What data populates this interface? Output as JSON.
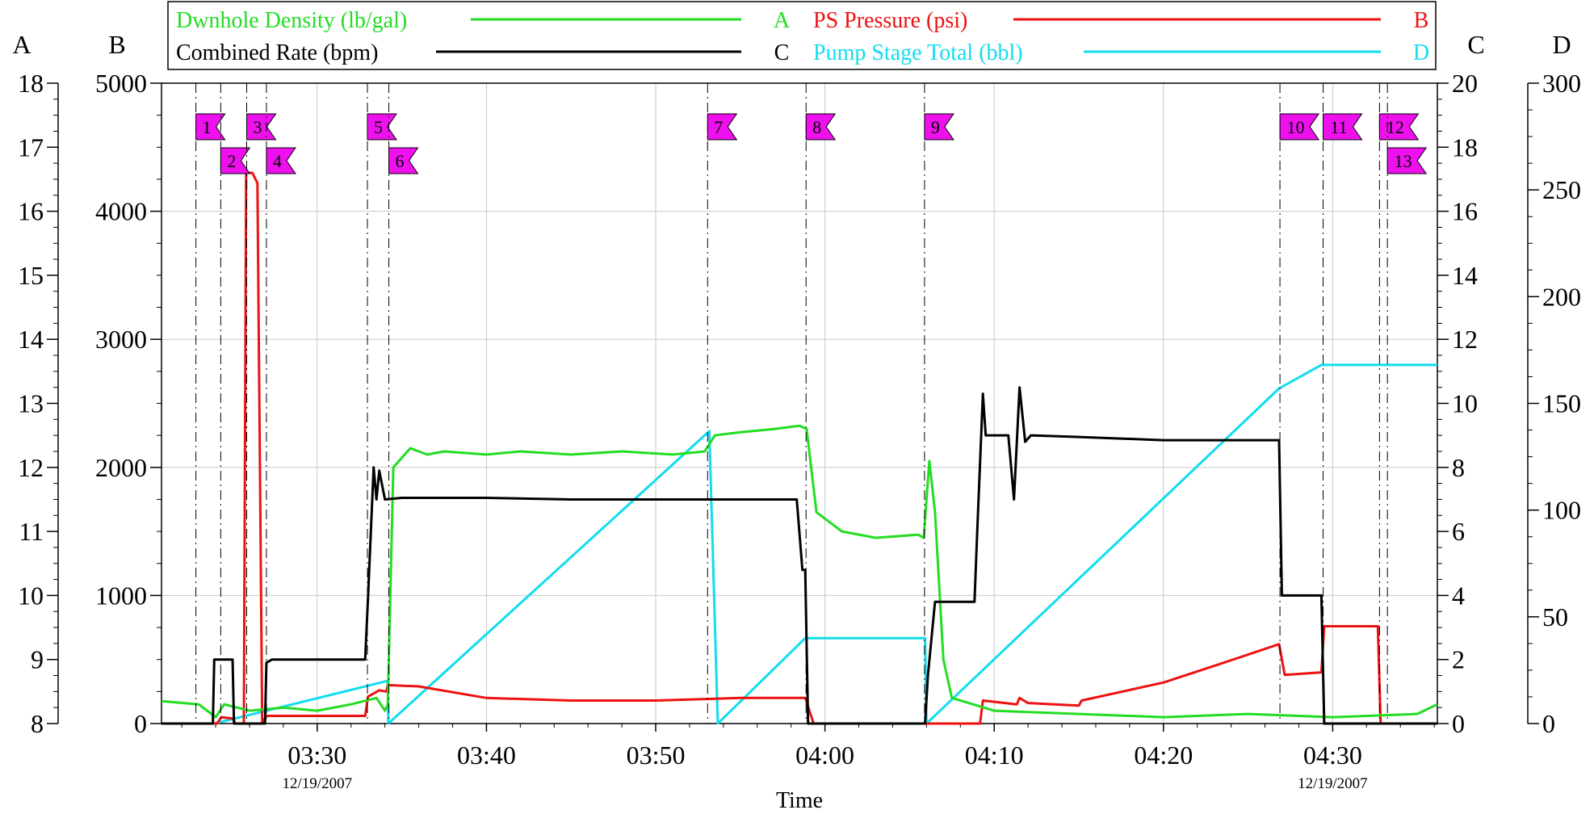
{
  "chart_data": {
    "type": "line",
    "xlabel": "Time",
    "x_range": [
      "03:20:48",
      "04:36:11"
    ],
    "x_ticks": [
      "03:30",
      "03:40",
      "03:50",
      "04:00",
      "04:10",
      "04:20",
      "04:30"
    ],
    "date_labels": [
      {
        "at": "03:30",
        "text": "12/19/2007"
      },
      {
        "at": "04:30",
        "text": "12/19/2007"
      }
    ],
    "axes": [
      {
        "id": "A",
        "label": "A",
        "side": "left",
        "min": 8,
        "max": 18,
        "ticks": [
          "8",
          "9",
          "10",
          "11",
          "12",
          "13",
          "14",
          "15",
          "16",
          "17",
          "18"
        ]
      },
      {
        "id": "B",
        "label": "B",
        "side": "left",
        "min": 0,
        "max": 5000,
        "ticks": [
          "0",
          "1000",
          "2000",
          "3000",
          "4000",
          "5000"
        ]
      },
      {
        "id": "C",
        "label": "C",
        "side": "right",
        "min": 0,
        "max": 20,
        "ticks": [
          "0",
          "2",
          "4",
          "6",
          "8",
          "10",
          "12",
          "14",
          "16",
          "18",
          "20"
        ]
      },
      {
        "id": "D",
        "label": "D",
        "side": "right",
        "min": 0,
        "max": 300,
        "ticks": [
          "0",
          "50",
          "100",
          "150",
          "200",
          "250",
          "300"
        ]
      }
    ],
    "legend": {
      "placement": "top",
      "entries": [
        {
          "name": "Dwnhole Density (lb/gal)",
          "axis": "A",
          "color": "#22dd22"
        },
        {
          "name": "PS Pressure (psi)",
          "axis": "B",
          "color": "#ee1111"
        },
        {
          "name": "Combined Rate (bpm)",
          "axis": "C",
          "color": "#000000"
        },
        {
          "name": "Pump Stage Total (bbl)",
          "axis": "D",
          "color": "#11ddee"
        }
      ]
    },
    "grid": true,
    "event_markers": [
      {
        "label": "1",
        "time": "03:22:50",
        "row": 0
      },
      {
        "label": "2",
        "time": "03:24:18",
        "row": 1
      },
      {
        "label": "3",
        "time": "03:25:50",
        "row": 0
      },
      {
        "label": "4",
        "time": "03:27:00",
        "row": 1
      },
      {
        "label": "5",
        "time": "03:32:58",
        "row": 0
      },
      {
        "label": "6",
        "time": "03:34:14",
        "row": 1
      },
      {
        "label": "7",
        "time": "03:53:04",
        "row": 0
      },
      {
        "label": "8",
        "time": "03:58:53",
        "row": 0
      },
      {
        "label": "9",
        "time": "04:05:53",
        "row": 0
      },
      {
        "label": "10",
        "time": "04:26:53",
        "row": 0
      },
      {
        "label": "11",
        "time": "04:29:26",
        "row": 0
      },
      {
        "label": "12",
        "time": "04:32:46",
        "row": 0
      },
      {
        "label": "13",
        "time": "04:33:14",
        "row": 1
      }
    ],
    "series": [
      {
        "name": "Dwnhole Density (lb/gal)",
        "axis": "A",
        "color": "#22dd22",
        "points": [
          [
            "03:20:48",
            8.35
          ],
          [
            "03:23:00",
            8.3
          ],
          [
            "03:24:00",
            8.1
          ],
          [
            "03:24:30",
            8.3
          ],
          [
            "03:26:00",
            8.2
          ],
          [
            "03:28:00",
            8.25
          ],
          [
            "03:30:00",
            8.2
          ],
          [
            "03:32:00",
            8.3
          ],
          [
            "03:33:30",
            8.4
          ],
          [
            "03:34:00",
            8.2
          ],
          [
            "03:34:10",
            8.3
          ],
          [
            "03:34:30",
            12.0
          ],
          [
            "03:35:30",
            12.3
          ],
          [
            "03:36:30",
            12.2
          ],
          [
            "03:37:30",
            12.25
          ],
          [
            "03:40:00",
            12.2
          ],
          [
            "03:42:00",
            12.25
          ],
          [
            "03:45:00",
            12.2
          ],
          [
            "03:48:00",
            12.25
          ],
          [
            "03:51:00",
            12.2
          ],
          [
            "03:52:54",
            12.25
          ],
          [
            "03:53:30",
            12.5
          ],
          [
            "03:55:00",
            12.55
          ],
          [
            "03:57:00",
            12.6
          ],
          [
            "03:58:30",
            12.65
          ],
          [
            "03:58:55",
            12.6
          ],
          [
            "03:59:30",
            11.3
          ],
          [
            "04:01:00",
            11.0
          ],
          [
            "04:03:00",
            10.9
          ],
          [
            "04:05:30",
            10.95
          ],
          [
            "04:05:50",
            10.9
          ],
          [
            "04:06:10",
            12.1
          ],
          [
            "04:06:30",
            11.3
          ],
          [
            "04:07:00",
            9.0
          ],
          [
            "04:07:30",
            8.4
          ],
          [
            "04:10:00",
            8.2
          ],
          [
            "04:15:00",
            8.15
          ],
          [
            "04:20:00",
            8.1
          ],
          [
            "04:25:00",
            8.15
          ],
          [
            "04:30:00",
            8.1
          ],
          [
            "04:35:00",
            8.15
          ],
          [
            "04:36:11",
            8.3
          ]
        ]
      },
      {
        "name": "PS Pressure (psi)",
        "axis": "B",
        "color": "#ee1111",
        "points": [
          [
            "03:20:48",
            0
          ],
          [
            "03:24:05",
            0
          ],
          [
            "03:24:20",
            50
          ],
          [
            "03:25:00",
            40
          ],
          [
            "03:25:10",
            0
          ],
          [
            "03:25:40",
            0
          ],
          [
            "03:25:48",
            4300
          ],
          [
            "03:26:10",
            4300
          ],
          [
            "03:26:28",
            4220
          ],
          [
            "03:26:45",
            0
          ],
          [
            "03:27:00",
            60
          ],
          [
            "03:32:50",
            60
          ],
          [
            "03:33:00",
            210
          ],
          [
            "03:33:40",
            260
          ],
          [
            "03:34:05",
            250
          ],
          [
            "03:34:10",
            300
          ],
          [
            "03:36:00",
            290
          ],
          [
            "03:40:00",
            200
          ],
          [
            "03:45:00",
            180
          ],
          [
            "03:50:00",
            180
          ],
          [
            "03:55:00",
            200
          ],
          [
            "03:58:50",
            200
          ],
          [
            "03:59:20",
            0
          ],
          [
            "04:09:10",
            0
          ],
          [
            "04:09:20",
            180
          ],
          [
            "04:11:20",
            150
          ],
          [
            "04:11:30",
            200
          ],
          [
            "04:12:00",
            160
          ],
          [
            "04:15:00",
            140
          ],
          [
            "04:15:10",
            180
          ],
          [
            "04:20:00",
            320
          ],
          [
            "04:23:00",
            450
          ],
          [
            "04:26:50",
            620
          ],
          [
            "04:27:10",
            380
          ],
          [
            "04:29:20",
            400
          ],
          [
            "04:29:30",
            760
          ],
          [
            "04:32:40",
            760
          ],
          [
            "04:32:50",
            0
          ],
          [
            "04:36:11",
            0
          ]
        ]
      },
      {
        "name": "Combined Rate (bpm)",
        "axis": "C",
        "color": "#000000",
        "points": [
          [
            "03:20:48",
            0
          ],
          [
            "03:23:50",
            0
          ],
          [
            "03:23:55",
            2.0
          ],
          [
            "03:25:00",
            2.0
          ],
          [
            "03:25:05",
            0
          ],
          [
            "03:26:55",
            0
          ],
          [
            "03:27:00",
            1.9
          ],
          [
            "03:27:20",
            2.0
          ],
          [
            "03:32:50",
            2.0
          ],
          [
            "03:33:00",
            3.9
          ],
          [
            "03:33:20",
            8.0
          ],
          [
            "03:33:30",
            7.0
          ],
          [
            "03:33:40",
            7.9
          ],
          [
            "03:34:00",
            7.0
          ],
          [
            "03:35:00",
            7.05
          ],
          [
            "03:40:00",
            7.05
          ],
          [
            "03:45:00",
            7.0
          ],
          [
            "03:58:20",
            7.0
          ],
          [
            "03:58:40",
            4.8
          ],
          [
            "03:58:50",
            4.8
          ],
          [
            "03:59:00",
            0
          ],
          [
            "04:05:55",
            0
          ],
          [
            "04:06:05",
            1.5
          ],
          [
            "04:06:30",
            3.8
          ],
          [
            "04:08:50",
            3.8
          ],
          [
            "04:09:00",
            6.0
          ],
          [
            "04:09:20",
            10.3
          ],
          [
            "04:09:30",
            9.0
          ],
          [
            "04:10:50",
            9.0
          ],
          [
            "04:11:10",
            7.0
          ],
          [
            "04:11:30",
            10.5
          ],
          [
            "04:11:50",
            8.8
          ],
          [
            "04:12:10",
            9.0
          ],
          [
            "04:15:00",
            8.95
          ],
          [
            "04:20:00",
            8.85
          ],
          [
            "04:26:50",
            8.85
          ],
          [
            "04:27:00",
            4.0
          ],
          [
            "04:29:20",
            4.0
          ],
          [
            "04:29:30",
            0
          ],
          [
            "04:36:11",
            0
          ]
        ]
      },
      {
        "name": "Pump Stage Total (bbl)",
        "axis": "D",
        "color": "#11ddee",
        "points": [
          [
            "03:20:48",
            0
          ],
          [
            "03:23:55",
            0
          ],
          [
            "03:34:10",
            20
          ],
          [
            "03:34:12",
            0
          ],
          [
            "03:53:10",
            137
          ],
          [
            "03:53:40",
            0
          ],
          [
            "03:58:50",
            40
          ],
          [
            "04:05:55",
            40
          ],
          [
            "04:06:00",
            0
          ],
          [
            "04:26:50",
            157
          ],
          [
            "04:29:20",
            168
          ],
          [
            "04:36:11",
            168
          ]
        ]
      }
    ]
  }
}
